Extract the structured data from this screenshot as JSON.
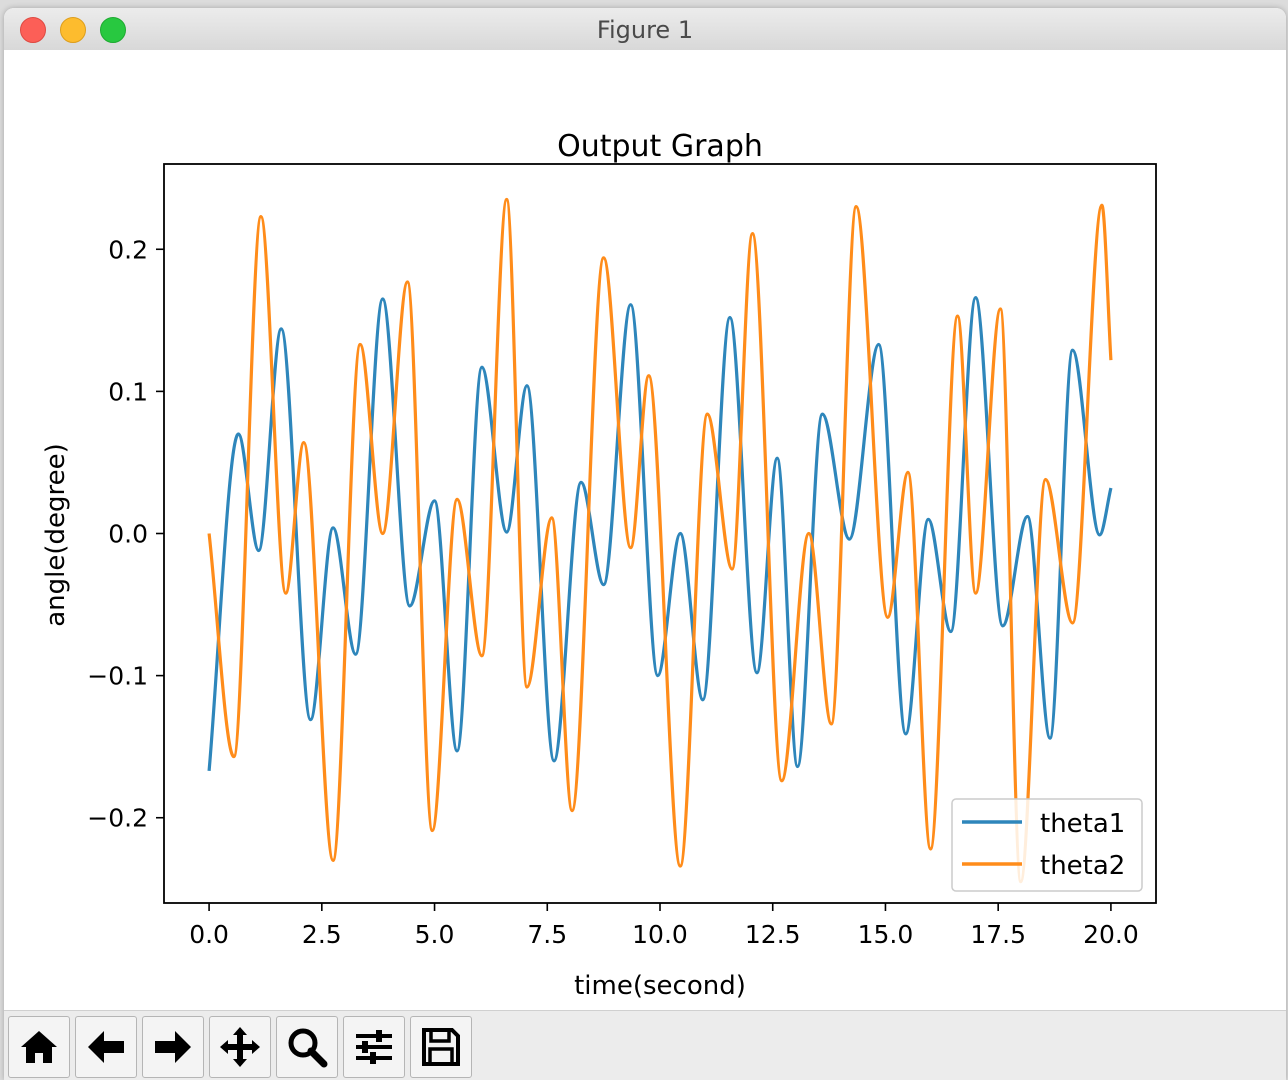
{
  "window": {
    "title": "Figure 1"
  },
  "toolbar": {
    "buttons": [
      {
        "name": "home-button",
        "icon": "home-icon"
      },
      {
        "name": "back-button",
        "icon": "arrow-left-icon"
      },
      {
        "name": "forward-button",
        "icon": "arrow-right-icon"
      },
      {
        "name": "pan-button",
        "icon": "move-icon"
      },
      {
        "name": "zoom-button",
        "icon": "magnifier-icon"
      },
      {
        "name": "configure-subplots-button",
        "icon": "sliders-icon"
      },
      {
        "name": "save-button",
        "icon": "floppy-disk-icon"
      }
    ]
  },
  "colors": {
    "theta1": "#2e86bb",
    "theta2": "#ff8c1a"
  },
  "chart_data": {
    "type": "line",
    "title": "Output Graph",
    "xlabel": "time(second)",
    "ylabel": "angle(degree)",
    "xlim": [
      -1.0,
      21.0
    ],
    "ylim": [
      -0.26,
      0.26
    ],
    "xticks": [
      0.0,
      2.5,
      5.0,
      7.5,
      10.0,
      12.5,
      15.0,
      17.5,
      20.0
    ],
    "xtick_labels": [
      "0.0",
      "2.5",
      "5.0",
      "7.5",
      "10.0",
      "12.5",
      "15.0",
      "17.5",
      "20.0"
    ],
    "yticks": [
      -0.2,
      -0.1,
      0.0,
      0.1,
      0.2
    ],
    "ytick_labels": [
      "−0.2",
      "−0.1",
      "0.0",
      "0.1",
      "0.2"
    ],
    "legend": "lower-right",
    "series": [
      {
        "name": "theta1",
        "color": "#2e86bb",
        "x": [
          0.0,
          0.65,
          1.1,
          1.6,
          2.25,
          2.75,
          3.25,
          3.85,
          4.45,
          5.0,
          5.5,
          6.05,
          6.6,
          7.05,
          7.65,
          8.25,
          8.75,
          9.35,
          9.95,
          10.45,
          10.95,
          11.55,
          12.15,
          12.6,
          13.05,
          13.6,
          14.2,
          14.85,
          15.45,
          15.95,
          16.45,
          17.0,
          17.6,
          18.15,
          18.65,
          19.15,
          19.75,
          20.0
        ],
        "y": [
          -0.167,
          0.07,
          -0.012,
          0.144,
          -0.131,
          0.004,
          -0.085,
          0.165,
          -0.051,
          0.023,
          -0.153,
          0.117,
          0.001,
          0.104,
          -0.16,
          0.036,
          -0.036,
          0.161,
          -0.1,
          0.0,
          -0.117,
          0.152,
          -0.098,
          0.053,
          -0.164,
          0.084,
          -0.004,
          0.133,
          -0.141,
          0.01,
          -0.069,
          0.166,
          -0.065,
          0.012,
          -0.144,
          0.129,
          -0.001,
          0.032
        ]
      },
      {
        "name": "theta2",
        "color": "#ff8c1a",
        "x": [
          0.0,
          0.55,
          1.15,
          1.7,
          2.1,
          2.75,
          3.35,
          3.85,
          4.4,
          4.95,
          5.5,
          6.05,
          6.6,
          7.05,
          7.6,
          8.05,
          8.75,
          9.35,
          9.75,
          10.45,
          11.05,
          11.6,
          12.05,
          12.7,
          13.3,
          13.8,
          14.35,
          15.05,
          15.5,
          16.0,
          16.6,
          17.0,
          17.55,
          18.0,
          18.55,
          19.15,
          19.8,
          20.0
        ],
        "y": [
          0.0,
          -0.157,
          0.223,
          -0.042,
          0.064,
          -0.23,
          0.133,
          0.0,
          0.177,
          -0.209,
          0.024,
          -0.086,
          0.235,
          -0.108,
          0.011,
          -0.195,
          0.194,
          -0.01,
          0.111,
          -0.234,
          0.084,
          -0.025,
          0.211,
          -0.174,
          0.0,
          -0.134,
          0.23,
          -0.059,
          0.043,
          -0.222,
          0.153,
          -0.042,
          0.158,
          -0.245,
          0.038,
          -0.063,
          0.231,
          0.122
        ]
      }
    ]
  }
}
